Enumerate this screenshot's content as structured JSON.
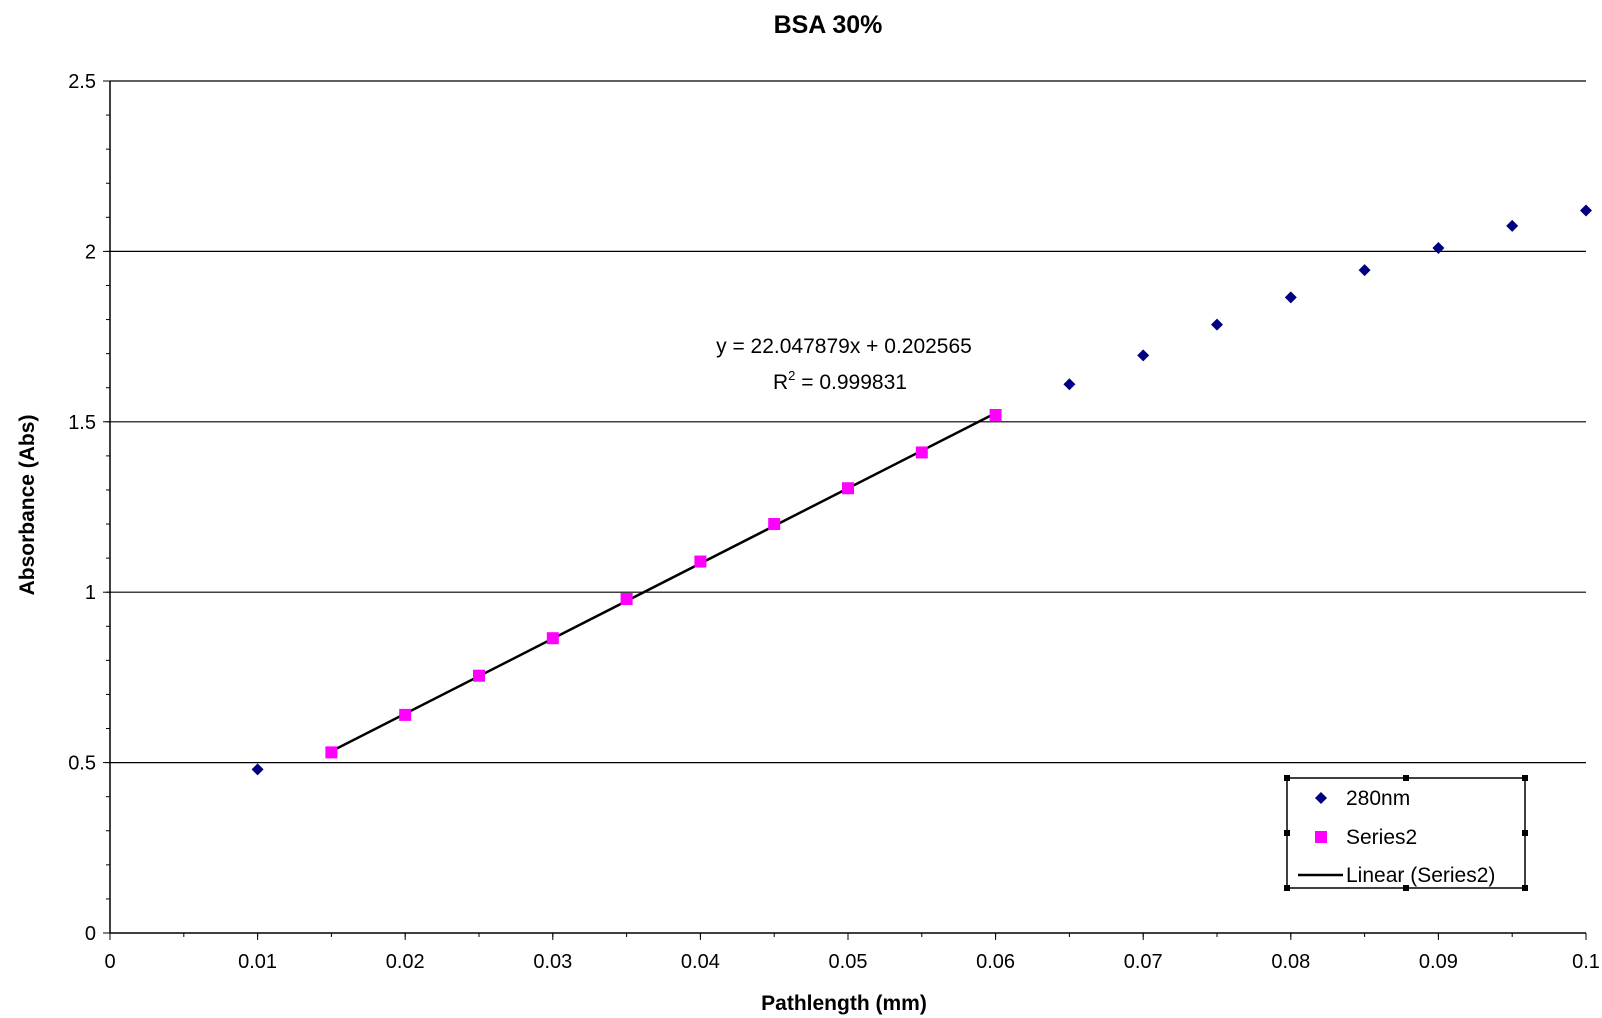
{
  "chart_data": {
    "type": "scatter",
    "title": "BSA 30%",
    "xlabel": "Pathlength (mm)",
    "ylabel": "Absorbance (Abs)",
    "xlim": [
      0,
      0.1
    ],
    "ylim": [
      0,
      2.5
    ],
    "x_ticks": [
      "0",
      "0.01",
      "0.02",
      "0.03",
      "0.04",
      "0.05",
      "0.06",
      "0.07",
      "0.08",
      "0.09",
      "0.1"
    ],
    "y_ticks": [
      "0",
      "0.5",
      "1",
      "1.5",
      "2",
      "2.5"
    ],
    "grid": "horizontal major gridlines",
    "legend_position": "bottom-right",
    "series": [
      {
        "name": "280nm",
        "marker": "diamond",
        "color": "#000080",
        "points": [
          [
            0.01,
            0.48
          ],
          [
            0.015,
            0.53
          ],
          [
            0.02,
            0.64
          ],
          [
            0.025,
            0.755
          ],
          [
            0.03,
            0.865
          ],
          [
            0.035,
            0.98
          ],
          [
            0.04,
            1.09
          ],
          [
            0.045,
            1.2
          ],
          [
            0.05,
            1.305
          ],
          [
            0.055,
            1.41
          ],
          [
            0.06,
            1.52
          ],
          [
            0.065,
            1.61
          ],
          [
            0.07,
            1.695
          ],
          [
            0.075,
            1.785
          ],
          [
            0.08,
            1.865
          ],
          [
            0.085,
            1.945
          ],
          [
            0.09,
            2.01
          ],
          [
            0.095,
            2.075
          ],
          [
            0.1,
            2.12
          ]
        ]
      },
      {
        "name": "Series2",
        "marker": "square",
        "color": "#ff00ff",
        "points": [
          [
            0.015,
            0.53
          ],
          [
            0.02,
            0.64
          ],
          [
            0.025,
            0.755
          ],
          [
            0.03,
            0.865
          ],
          [
            0.035,
            0.98
          ],
          [
            0.04,
            1.09
          ],
          [
            0.045,
            1.2
          ],
          [
            0.05,
            1.305
          ],
          [
            0.055,
            1.41
          ],
          [
            0.06,
            1.52
          ]
        ]
      }
    ],
    "trendline": {
      "name": "Linear (Series2)",
      "color": "#000000",
      "slope": 22.047879,
      "intercept": 0.202565,
      "x_range": [
        0.015,
        0.06
      ],
      "equation_text": "y = 22.047879x + 0.202565",
      "r2_prefix": "R",
      "r2_sup": "2",
      "r2_value_text": " = 0.999831"
    }
  }
}
